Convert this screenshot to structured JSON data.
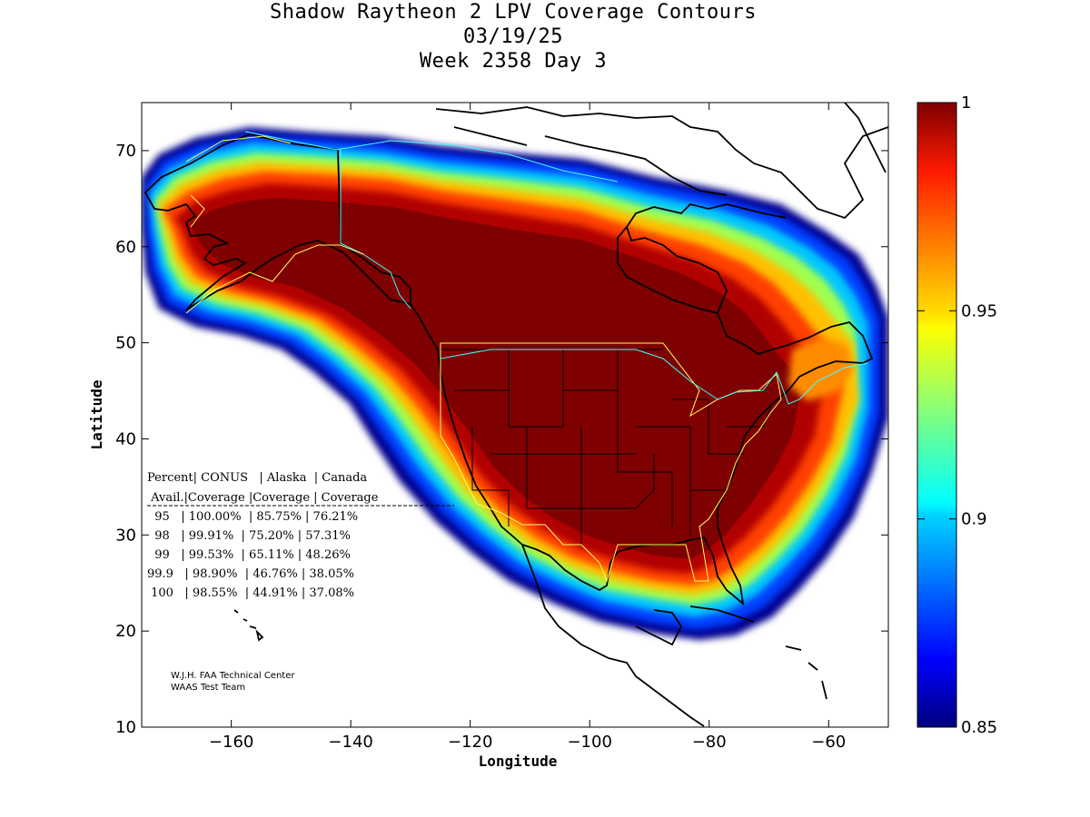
{
  "title": {
    "line1": "Shadow Raytheon 2 LPV Coverage Contours",
    "line2": "03/19/25",
    "line3": "Week 2358 Day 3"
  },
  "axes": {
    "xlabel": "Longitude",
    "ylabel": "Latitude",
    "xlim": [
      -175,
      -50
    ],
    "ylim": [
      10,
      75
    ],
    "xticks": [
      -160,
      -140,
      -120,
      -100,
      -80,
      -60
    ],
    "yticks": [
      10,
      20,
      30,
      40,
      50,
      60,
      70
    ]
  },
  "colorbar": {
    "range": [
      0.85,
      1
    ],
    "ticks": [
      "1",
      "0.95",
      "0.9",
      "0.85"
    ],
    "colormap": "jet"
  },
  "stats_table": {
    "header1": "Percent| CONUS   | Alaska  | Canada",
    "header2": " Avail.|Coverage |Coverage | Coverage",
    "rows": [
      "  95   | 100.00%  | 85.75% | 76.21%",
      "  98   | 99.91%  | 75.20% | 57.31%",
      "  99   | 99.53%  | 65.11% | 48.26%",
      "99.9   | 98.90%  | 46.76% | 38.05%",
      " 100   | 98.55%  | 44.91% | 37.08%"
    ]
  },
  "credit": {
    "line1": "W.J.H. FAA Technical Center",
    "line2": "WAAS Test Team"
  }
}
